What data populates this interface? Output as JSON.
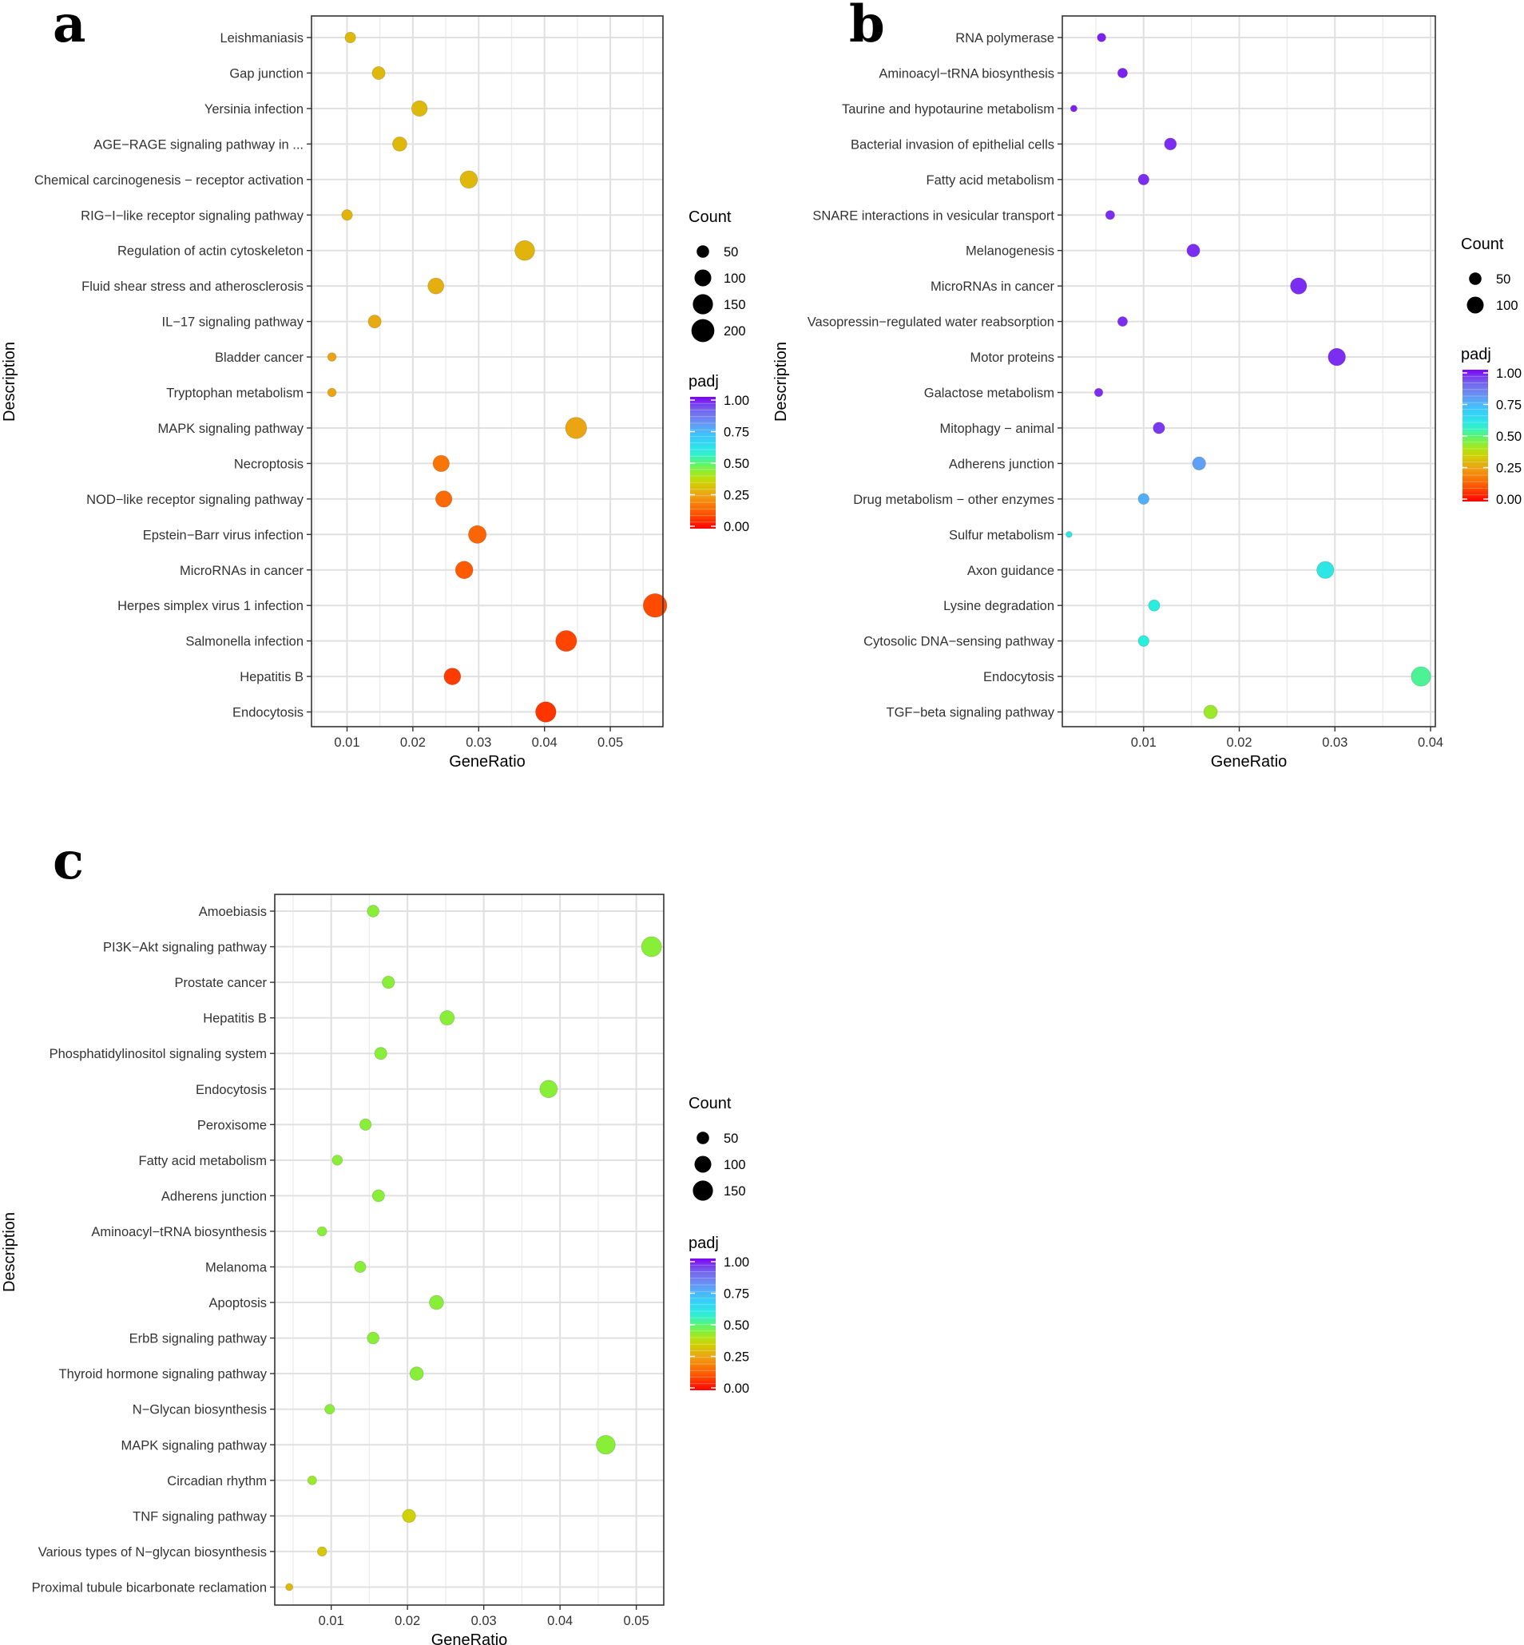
{
  "chart_data": [
    {
      "panel": "a",
      "type": "scatter",
      "xlabel": "GeneRatio",
      "ylabel": "Description",
      "xlim": [
        0.0046,
        0.058
      ],
      "xticks": [
        0.01,
        0.02,
        0.03,
        0.04,
        0.05
      ],
      "tick_labels": [
        "0.01",
        "0.02",
        "0.03",
        "0.04",
        "0.05"
      ],
      "grid": true,
      "size_legend": {
        "title": "Count",
        "values": [
          50,
          100,
          150,
          200
        ],
        "labels": [
          "50",
          "100",
          "150",
          "200"
        ]
      },
      "color_legend": {
        "title": "padj",
        "labels": [
          "1.00",
          "0.75",
          "0.50",
          "0.25",
          "0.00"
        ]
      },
      "categories": [
        "Leishmaniasis",
        "Gap junction",
        "Yersinia infection",
        "AGE−RAGE signaling pathway in ...",
        "Chemical carcinogenesis − receptor activation",
        "RIG−I−like receptor signaling pathway",
        "Regulation of actin cytoskeleton",
        "Fluid shear stress and atherosclerosis",
        "IL−17 signaling pathway",
        "Bladder cancer",
        "Tryptophan metabolism",
        "MAPK signaling pathway",
        "Necroptosis",
        "NOD−like receptor signaling pathway",
        "Epstein−Barr virus infection",
        "MicroRNAs in cancer",
        "Herpes simplex virus 1 infection",
        "Salmonella infection",
        "Hepatitis B",
        "Endocytosis"
      ],
      "gene_ratio": [
        0.0105,
        0.0148,
        0.021,
        0.018,
        0.0285,
        0.01,
        0.037,
        0.0235,
        0.0142,
        0.0077,
        0.0077,
        0.0448,
        0.0243,
        0.0247,
        0.0298,
        0.0278,
        0.0568,
        0.0433,
        0.026,
        0.0402
      ],
      "count": [
        35,
        55,
        85,
        70,
        110,
        35,
        145,
        90,
        55,
        20,
        20,
        170,
        95,
        95,
        115,
        110,
        215,
        165,
        100,
        155
      ],
      "padj": [
        0.3,
        0.3,
        0.3,
        0.3,
        0.3,
        0.29,
        0.29,
        0.28,
        0.27,
        0.26,
        0.26,
        0.26,
        0.17,
        0.15,
        0.14,
        0.12,
        0.1,
        0.09,
        0.08,
        0.07
      ]
    },
    {
      "panel": "b",
      "type": "scatter",
      "xlabel": "GeneRatio",
      "ylabel": "Description",
      "xlim": [
        0.0015,
        0.0405
      ],
      "xticks": [
        0.01,
        0.02,
        0.03,
        0.04
      ],
      "tick_labels": [
        "0.01",
        "0.02",
        "0.03",
        "0.04"
      ],
      "grid": true,
      "size_legend": {
        "title": "Count",
        "values": [
          50,
          100
        ],
        "labels": [
          "50",
          "100"
        ]
      },
      "color_legend": {
        "title": "padj",
        "labels": [
          "1.00",
          "0.75",
          "0.50",
          "0.25",
          "0.00"
        ]
      },
      "categories": [
        "RNA polymerase",
        "Aminoacyl−tRNA biosynthesis",
        "Taurine and hypotaurine metabolism",
        "Bacterial invasion of epithelial cells",
        "Fatty acid metabolism",
        "SNARE interactions in vesicular transport",
        "Melanogenesis",
        "MicroRNAs in cancer",
        "Vasopressin−regulated water reabsorption",
        "Motor proteins",
        "Galactose metabolism",
        "Mitophagy − animal",
        "Adherens junction",
        "Drug metabolism − other enzymes",
        "Sulfur metabolism",
        "Axon guidance",
        "Lysine degradation",
        "Cytosolic DNA−sensing pathway",
        "Endocytosis",
        "TGF−beta signaling pathway"
      ],
      "gene_ratio": [
        0.0056,
        0.0078,
        0.0027,
        0.0128,
        0.01,
        0.0065,
        0.0152,
        0.0262,
        0.0078,
        0.0302,
        0.0053,
        0.0116,
        0.0158,
        0.01,
        0.0022,
        0.029,
        0.0111,
        0.01,
        0.039,
        0.017
      ],
      "count": [
        20,
        28,
        10,
        46,
        36,
        23,
        55,
        94,
        28,
        108,
        19,
        42,
        57,
        36,
        8,
        104,
        40,
        36,
        140,
        61
      ],
      "padj": [
        0.97,
        0.97,
        0.97,
        0.96,
        0.96,
        0.96,
        0.96,
        0.96,
        0.96,
        0.96,
        0.96,
        0.95,
        0.78,
        0.75,
        0.6,
        0.6,
        0.58,
        0.57,
        0.52,
        0.42
      ]
    },
    {
      "panel": "c",
      "type": "scatter",
      "xlabel": "GeneRatio",
      "ylabel": "Description",
      "xlim": [
        0.0026,
        0.0536
      ],
      "xticks": [
        0.01,
        0.02,
        0.03,
        0.04,
        0.05
      ],
      "tick_labels": [
        "0.01",
        "0.02",
        "0.03",
        "0.04",
        "0.05"
      ],
      "grid": true,
      "size_legend": {
        "title": "Count",
        "values": [
          50,
          100,
          150
        ],
        "labels": [
          "50",
          "100",
          "150"
        ]
      },
      "color_legend": {
        "title": "padj",
        "labels": [
          "1.00",
          "0.75",
          "0.50",
          "0.25",
          "0.00"
        ]
      },
      "categories": [
        "Amoebiasis",
        "PI3K−Akt signaling pathway",
        "Prostate cancer",
        "Hepatitis B",
        "Phosphatidylinositol signaling system",
        "Endocytosis",
        "Peroxisome",
        "Fatty acid metabolism",
        "Adherens junction",
        "Aminoacyl−tRNA biosynthesis",
        "Melanoma",
        "Apoptosis",
        "ErbB signaling pathway",
        "Thyroid hormone signaling pathway",
        "N−Glycan biosynthesis",
        "MAPK signaling pathway",
        "Circadian rhythm",
        "TNF signaling pathway",
        "Various types of N−glycan biosynthesis",
        "Proximal tubule bicarbonate reclamation"
      ],
      "gene_ratio": [
        0.0155,
        0.052,
        0.0175,
        0.0252,
        0.0165,
        0.0385,
        0.0145,
        0.0108,
        0.0162,
        0.0088,
        0.0138,
        0.0238,
        0.0155,
        0.0212,
        0.0098,
        0.046,
        0.0075,
        0.0202,
        0.0088,
        0.0045
      ],
      "count": [
        45,
        150,
        50,
        72,
        48,
        110,
        42,
        31,
        47,
        25,
        40,
        68,
        45,
        61,
        28,
        132,
        22,
        58,
        25,
        13
      ],
      "padj": [
        0.44,
        0.44,
        0.44,
        0.44,
        0.44,
        0.44,
        0.44,
        0.44,
        0.44,
        0.44,
        0.44,
        0.44,
        0.44,
        0.44,
        0.44,
        0.44,
        0.42,
        0.35,
        0.33,
        0.3
      ]
    }
  ]
}
